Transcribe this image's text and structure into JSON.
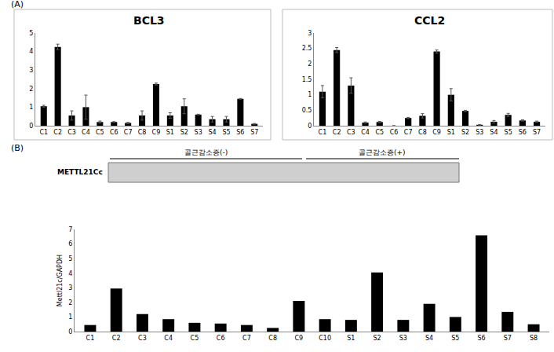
{
  "panel_labels": [
    "(A)",
    "(B)"
  ],
  "blot": {
    "label": "METTL21Cc",
    "groups": [
      "골근감소증(-)",
      "골근감소증(+)"
    ]
  },
  "chart_data": [
    {
      "type": "bar",
      "title": "BCL3",
      "categories": [
        "C1",
        "C2",
        "C3",
        "C4",
        "C5",
        "C6",
        "C7",
        "C8",
        "C9",
        "S1",
        "S2",
        "S3",
        "S4",
        "S5",
        "S6",
        "S7"
      ],
      "values": [
        1.05,
        4.25,
        0.55,
        1.0,
        0.2,
        0.2,
        0.15,
        0.55,
        2.25,
        0.55,
        1.05,
        0.6,
        0.35,
        0.35,
        1.45,
        0.1
      ],
      "errors": [
        0.05,
        0.15,
        0.25,
        0.65,
        0.05,
        0.02,
        0.03,
        0.25,
        0.05,
        0.15,
        0.4,
        0.02,
        0.15,
        0.15,
        0.02,
        0.02
      ],
      "color": "#000000",
      "ylim": [
        0,
        5
      ],
      "yticks": [
        0,
        1,
        2,
        3,
        4,
        5
      ],
      "grid": false
    },
    {
      "type": "bar",
      "title": "CCL2",
      "categories": [
        "C1",
        "C2",
        "C3",
        "C4",
        "C5",
        "C6",
        "C7",
        "C8",
        "C9",
        "S1",
        "S2",
        "S3",
        "S4",
        "S5",
        "S6",
        "S7"
      ],
      "values": [
        1.1,
        2.45,
        1.3,
        0.1,
        0.12,
        0,
        0.25,
        0.32,
        2.4,
        1.0,
        0.48,
        0.03,
        0.13,
        0.35,
        0.17,
        0.13
      ],
      "errors": [
        0.2,
        0.08,
        0.25,
        0.02,
        0.02,
        0,
        0.02,
        0.07,
        0.05,
        0.2,
        0.02,
        0.01,
        0.04,
        0.05,
        0.02,
        0.02
      ],
      "color": "#000000",
      "ylim": [
        0,
        3
      ],
      "yticks": [
        0,
        0.5,
        1,
        1.5,
        2,
        2.5,
        3
      ],
      "grid": false
    },
    {
      "type": "bar",
      "ylabel": "Mettl21c/GAPDH",
      "categories": [
        "C1",
        "C2",
        "C3",
        "C4",
        "C5",
        "C6",
        "C7",
        "C8",
        "C9",
        "C10",
        "S1",
        "S2",
        "S3",
        "S4",
        "S5",
        "S6",
        "S7",
        "S8"
      ],
      "values": [
        0.45,
        2.95,
        1.2,
        0.85,
        0.6,
        0.55,
        0.45,
        0.25,
        2.1,
        0.85,
        0.8,
        4.05,
        0.8,
        1.9,
        1.0,
        6.6,
        1.35,
        0.5
      ],
      "color": "#000000",
      "ylim": [
        0,
        7
      ],
      "yticks": [
        0,
        1,
        2,
        3,
        4,
        5,
        6,
        7
      ],
      "grid": false
    }
  ]
}
